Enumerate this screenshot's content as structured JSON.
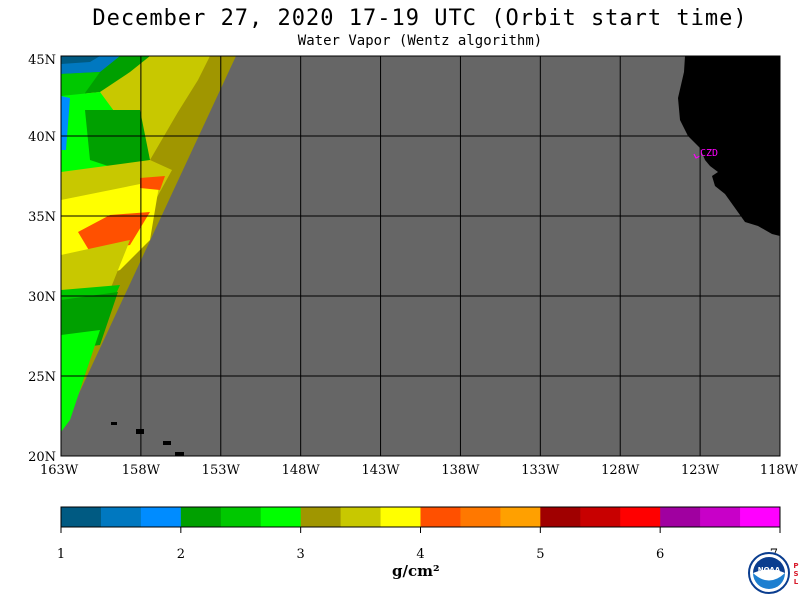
{
  "header": {
    "title": "December 27, 2020  17-19 UTC  (Orbit start time)",
    "subtitle": "Water Vapor (Wentz algorithm)"
  },
  "map": {
    "lat_labels": [
      "45N",
      "40N",
      "35N",
      "30N",
      "25N",
      "20N"
    ],
    "lon_labels": [
      "163W",
      "158W",
      "153W",
      "148W",
      "143W",
      "138W",
      "133W",
      "128W",
      "123W",
      "118W"
    ],
    "lat_range": [
      20,
      45
    ],
    "lon_range": [
      -163,
      -118
    ],
    "station_label": "CZD",
    "station_color": "#ff00ff",
    "no_data_color": "#666666",
    "land_color": "#000000"
  },
  "colorbar": {
    "tick_labels": [
      "1",
      "2",
      "3",
      "4",
      "5",
      "6",
      "7"
    ],
    "units": "g/cm²",
    "colors": [
      "#005a82",
      "#0078c0",
      "#008cff",
      "#00a000",
      "#00c800",
      "#00ff00",
      "#a09600",
      "#c8c800",
      "#ffff00",
      "#ff5000",
      "#ff7800",
      "#ffa000",
      "#a00000",
      "#c80000",
      "#ff0000",
      "#a000a0",
      "#c800c8",
      "#ff00ff"
    ]
  },
  "logo": {
    "name": "noaa-logo",
    "text": "NOAA",
    "side_text": "PSL"
  }
}
